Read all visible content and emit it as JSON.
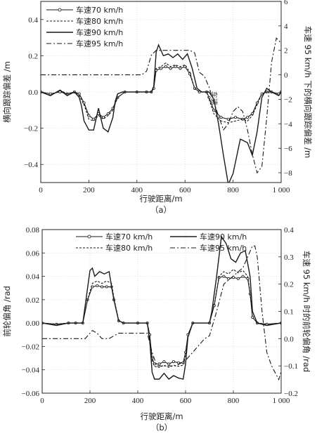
{
  "style": {
    "colors": {
      "axis": "#222222",
      "grid": "#cfcfcf",
      "series": "#1a1a1a"
    }
  },
  "chart_data": [
    {
      "type": "line",
      "caption": "（a）",
      "xlabel": "行驶距离/m",
      "ylabel": "横向跟踪偏差 /m",
      "y2label": "车速 95 km/h 下的横向跟踪偏差 /m",
      "xlim": [
        0,
        1000
      ],
      "ylim": [
        -0.5,
        0.5
      ],
      "y2lim": [
        -8.8,
        6
      ],
      "xticks": [
        0,
        200,
        400,
        600,
        800,
        1000
      ],
      "xticklabels": [
        "0",
        "200",
        "400",
        "600",
        "800",
        "1 000"
      ],
      "yticks": [
        -0.4,
        -0.2,
        0.0,
        0.2,
        0.4
      ],
      "yticklabels": [
        "−0.4",
        "−0.2",
        "0.0",
        "0.2",
        "0.4"
      ],
      "y2ticks": [
        -8,
        -6,
        -4,
        -2,
        0,
        2,
        4,
        6
      ],
      "y2ticklabels": [
        "−8",
        "−6",
        "−4",
        "−2",
        "0",
        "2",
        "4",
        "6"
      ],
      "grid": true,
      "legend_position": "top-left",
      "annotation": "车速",
      "series": [
        {
          "name": "车速70 km/h",
          "axis": "left",
          "style": "marker",
          "x": [
            0,
            40,
            80,
            110,
            140,
            160,
            180,
            200,
            220,
            240,
            260,
            280,
            300,
            320,
            350,
            400,
            440,
            460,
            470,
            480,
            500,
            520,
            540,
            560,
            580,
            600,
            620,
            640,
            660,
            690,
            700,
            720,
            750,
            780,
            810,
            840,
            860,
            880,
            900,
            920,
            940,
            960,
            990,
            1000
          ],
          "y": [
            0.0,
            -0.01,
            0.0,
            -0.01,
            0.0,
            -0.01,
            -0.06,
            -0.13,
            -0.15,
            -0.12,
            -0.14,
            -0.12,
            -0.09,
            -0.03,
            0.0,
            0.0,
            0.0,
            0.0,
            0.02,
            0.12,
            0.13,
            0.14,
            0.13,
            0.14,
            0.13,
            0.14,
            0.1,
            0.02,
            0.0,
            0.0,
            -0.03,
            -0.1,
            -0.14,
            -0.15,
            -0.14,
            -0.15,
            -0.14,
            -0.12,
            -0.06,
            -0.01,
            0.0,
            0.0,
            -0.01,
            0.0
          ]
        },
        {
          "name": "车速80 km/h",
          "axis": "left",
          "style": "dash",
          "x": [
            0,
            40,
            80,
            110,
            140,
            160,
            180,
            200,
            220,
            240,
            260,
            280,
            300,
            320,
            350,
            400,
            440,
            460,
            470,
            480,
            500,
            520,
            540,
            560,
            580,
            600,
            620,
            640,
            660,
            690,
            700,
            720,
            750,
            780,
            810,
            840,
            860,
            880,
            900,
            920,
            940,
            960,
            990,
            1000
          ],
          "y": [
            0.0,
            -0.02,
            0.01,
            -0.01,
            0.0,
            -0.02,
            -0.07,
            -0.15,
            -0.16,
            -0.13,
            -0.15,
            -0.13,
            -0.1,
            -0.03,
            0.0,
            0.0,
            0.0,
            0.0,
            0.02,
            0.13,
            0.14,
            0.16,
            0.14,
            0.15,
            0.14,
            0.15,
            0.11,
            0.02,
            0.0,
            0.0,
            -0.04,
            -0.12,
            -0.16,
            -0.17,
            -0.16,
            -0.15,
            -0.16,
            -0.13,
            -0.07,
            -0.01,
            0.0,
            0.0,
            -0.01,
            0.0
          ]
        },
        {
          "name": "车速90 km/h",
          "axis": "left",
          "style": "solid",
          "x": [
            0,
            40,
            80,
            110,
            140,
            160,
            170,
            180,
            200,
            220,
            240,
            260,
            280,
            300,
            310,
            320,
            340,
            400,
            440,
            460,
            470,
            480,
            490,
            510,
            530,
            550,
            570,
            590,
            610,
            630,
            650,
            670,
            700,
            720,
            740,
            760,
            780,
            800,
            830,
            860,
            880,
            900,
            920,
            940,
            960,
            990,
            1000
          ],
          "y": [
            0.0,
            -0.02,
            0.01,
            -0.02,
            0.0,
            -0.03,
            -0.08,
            -0.16,
            -0.21,
            -0.21,
            -0.09,
            -0.2,
            -0.22,
            -0.14,
            -0.05,
            -0.01,
            0.0,
            0.0,
            0.0,
            0.0,
            0.03,
            0.22,
            0.26,
            0.2,
            0.21,
            0.19,
            0.21,
            0.18,
            0.21,
            0.13,
            0.02,
            0.0,
            0.0,
            -0.04,
            -0.18,
            -0.35,
            -0.51,
            -0.45,
            -0.26,
            -0.28,
            -0.35,
            -0.22,
            -0.03,
            0.02,
            0.0,
            -0.02,
            0.0
          ]
        },
        {
          "name": "车速95 km/h",
          "axis": "right",
          "style": "dashdot",
          "x": [
            0,
            100,
            200,
            280,
            320,
            350,
            380,
            420,
            440,
            460,
            480,
            500,
            540,
            580,
            620,
            640,
            660,
            680,
            700,
            720,
            740,
            760,
            780,
            800,
            820,
            840,
            860,
            880,
            900,
            920,
            940,
            960,
            980,
            1000
          ],
          "y": [
            0.0,
            0.0,
            0.0,
            0.0,
            0.0,
            0.0,
            0.0,
            0.0,
            0.3,
            1.6,
            2.0,
            2.0,
            2.0,
            2.0,
            2.0,
            1.8,
            0.2,
            -0.1,
            -1.0,
            -2.2,
            -3.4,
            -4.5,
            -4.0,
            -3.0,
            -2.6,
            -3.0,
            -4.5,
            -6.5,
            -8.0,
            -7.5,
            -3.5,
            1.0,
            3.0,
            2.6
          ]
        }
      ]
    },
    {
      "type": "line",
      "caption": "（b）",
      "xlabel": "行驶距离/m",
      "ylabel": "前轮偏角 /rad",
      "y2label": "车速 95 km/h 时的前轮偏角 /rad",
      "xlim": [
        0,
        1000
      ],
      "ylim": [
        -0.06,
        0.08
      ],
      "y2lim": [
        -0.2,
        0.4
      ],
      "xticks": [
        0,
        200,
        400,
        600,
        800,
        1000
      ],
      "xticklabels": [
        "0",
        "200",
        "400",
        "600",
        "800",
        "1 000"
      ],
      "yticks": [
        -0.06,
        -0.04,
        -0.02,
        0.0,
        0.02,
        0.04,
        0.06,
        0.08
      ],
      "yticklabels": [
        "−0.06",
        "−0.04",
        "−0.02",
        "0.00",
        "0.02",
        "0.04",
        "0.06",
        "0.08"
      ],
      "y2ticks": [
        -0.2,
        -0.1,
        0.0,
        0.1,
        0.2,
        0.3,
        0.4
      ],
      "y2ticklabels": [
        "−0.2",
        "−0.1",
        "0.0",
        "0.1",
        "0.2",
        "0.3",
        "0.4"
      ],
      "grid": true,
      "legend_position": "top-center",
      "series": [
        {
          "name": "车速70 km/h",
          "axis": "left",
          "style": "marker",
          "x": [
            0,
            60,
            110,
            140,
            170,
            190,
            210,
            230,
            250,
            270,
            290,
            300,
            320,
            340,
            400,
            440,
            450,
            460,
            470,
            490,
            510,
            530,
            550,
            570,
            590,
            600,
            610,
            630,
            700,
            720,
            740,
            760,
            780,
            800,
            820,
            840,
            860,
            870,
            880,
            900,
            940,
            1000
          ],
          "y": [
            0.0,
            -0.001,
            0.0,
            0.0,
            0.0,
            0.02,
            0.031,
            0.032,
            0.031,
            0.031,
            0.031,
            0.02,
            0.002,
            0.0,
            0.0,
            0.0,
            -0.01,
            -0.03,
            -0.035,
            -0.035,
            -0.033,
            -0.035,
            -0.033,
            -0.034,
            -0.034,
            -0.025,
            -0.01,
            0.0,
            0.0,
            0.015,
            0.039,
            0.04,
            0.038,
            0.039,
            0.038,
            0.04,
            0.038,
            0.025,
            0.005,
            0.0,
            -0.001,
            0.0
          ]
        },
        {
          "name": "车速80 km/h",
          "axis": "left",
          "style": "dash",
          "x": [
            0,
            60,
            110,
            140,
            170,
            190,
            210,
            230,
            250,
            270,
            290,
            300,
            320,
            340,
            400,
            440,
            450,
            460,
            470,
            490,
            510,
            530,
            550,
            570,
            590,
            600,
            610,
            630,
            700,
            720,
            740,
            760,
            780,
            800,
            820,
            840,
            860,
            870,
            880,
            900,
            940,
            1000
          ],
          "y": [
            0.0,
            -0.001,
            0.0,
            0.0,
            0.0,
            0.02,
            0.034,
            0.036,
            0.034,
            0.036,
            0.034,
            0.022,
            0.002,
            0.0,
            0.0,
            0.0,
            -0.012,
            -0.032,
            -0.037,
            -0.038,
            -0.036,
            -0.038,
            -0.036,
            -0.037,
            -0.036,
            -0.027,
            -0.012,
            0.0,
            0.0,
            0.016,
            0.04,
            0.044,
            0.042,
            0.046,
            0.043,
            0.045,
            0.04,
            0.026,
            0.005,
            0.0,
            -0.001,
            0.0
          ]
        },
        {
          "name": "车速90 km/h",
          "axis": "left",
          "style": "solid",
          "x": [
            0,
            60,
            110,
            140,
            170,
            190,
            200,
            210,
            220,
            240,
            260,
            280,
            300,
            320,
            340,
            400,
            440,
            450,
            460,
            470,
            490,
            510,
            530,
            550,
            570,
            590,
            600,
            610,
            630,
            700,
            710,
            730,
            750,
            770,
            790,
            810,
            830,
            850,
            870,
            880,
            900,
            940,
            1000
          ],
          "y": [
            0.0,
            -0.002,
            0.0,
            0.0,
            0.0,
            0.03,
            0.045,
            0.047,
            0.04,
            0.044,
            0.042,
            0.044,
            0.02,
            0.002,
            0.0,
            0.0,
            0.0,
            -0.015,
            -0.042,
            -0.048,
            -0.048,
            -0.043,
            -0.048,
            -0.045,
            -0.047,
            -0.048,
            -0.035,
            -0.012,
            0.0,
            0.0,
            0.01,
            0.04,
            0.074,
            0.068,
            0.055,
            0.052,
            0.06,
            0.062,
            0.04,
            0.01,
            0.0,
            -0.002,
            0.0
          ]
        },
        {
          "name": "车速95 km/h",
          "axis": "right",
          "style": "dashdot",
          "x": [
            0,
            100,
            140,
            180,
            210,
            230,
            250,
            280,
            300,
            320,
            400,
            440,
            460,
            480,
            500,
            560,
            600,
            640,
            680,
            700,
            730,
            760,
            800,
            840,
            860,
            880,
            890,
            900,
            920,
            940,
            960,
            990,
            1000
          ],
          "y": [
            0.0,
            0.0,
            0.0,
            0.0,
            0.03,
            0.02,
            0.0,
            0.0,
            0.01,
            0.02,
            0.02,
            0.02,
            -0.05,
            -0.1,
            -0.1,
            -0.1,
            -0.08,
            -0.04,
            0.0,
            0.01,
            0.1,
            0.2,
            0.23,
            0.26,
            0.3,
            0.34,
            0.34,
            0.3,
            0.1,
            -0.05,
            -0.1,
            -0.15,
            -0.12
          ]
        }
      ]
    }
  ]
}
